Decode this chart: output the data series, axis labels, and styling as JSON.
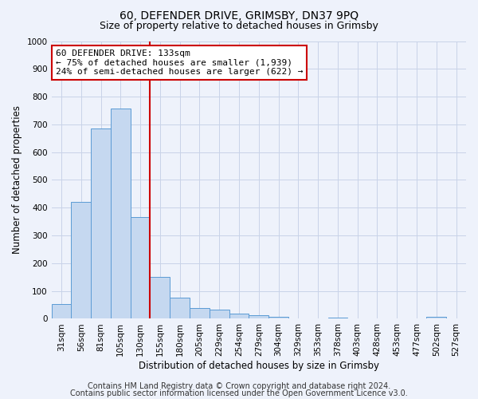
{
  "title": "60, DEFENDER DRIVE, GRIMSBY, DN37 9PQ",
  "subtitle": "Size of property relative to detached houses in Grimsby",
  "xlabel": "Distribution of detached houses by size in Grimsby",
  "ylabel": "Number of detached properties",
  "bar_labels": [
    "31sqm",
    "56sqm",
    "81sqm",
    "105sqm",
    "130sqm",
    "155sqm",
    "180sqm",
    "205sqm",
    "229sqm",
    "254sqm",
    "279sqm",
    "304sqm",
    "329sqm",
    "353sqm",
    "378sqm",
    "403sqm",
    "428sqm",
    "453sqm",
    "477sqm",
    "502sqm",
    "527sqm"
  ],
  "bar_values": [
    52,
    422,
    685,
    757,
    365,
    152,
    75,
    40,
    32,
    18,
    12,
    8,
    0,
    0,
    5,
    0,
    0,
    0,
    0,
    8,
    0
  ],
  "bar_color": "#c5d8f0",
  "bar_edge_color": "#5b9bd5",
  "vline_index": 4,
  "vline_color": "#cc0000",
  "annotation_line1": "60 DEFENDER DRIVE: 133sqm",
  "annotation_line2": "← 75% of detached houses are smaller (1,939)",
  "annotation_line3": "24% of semi-detached houses are larger (622) →",
  "annotation_box_facecolor": "#ffffff",
  "annotation_box_edgecolor": "#cc0000",
  "ylim": [
    0,
    1000
  ],
  "yticks": [
    0,
    100,
    200,
    300,
    400,
    500,
    600,
    700,
    800,
    900,
    1000
  ],
  "footer_line1": "Contains HM Land Registry data © Crown copyright and database right 2024.",
  "footer_line2": "Contains public sector information licensed under the Open Government Licence v3.0.",
  "bg_color": "#eef2fb",
  "plot_bg_color": "#eef2fb",
  "grid_color": "#c8d3e8",
  "title_fontsize": 10,
  "subtitle_fontsize": 9,
  "axis_label_fontsize": 8.5,
  "tick_fontsize": 7.5,
  "annotation_fontsize": 8,
  "footer_fontsize": 7
}
